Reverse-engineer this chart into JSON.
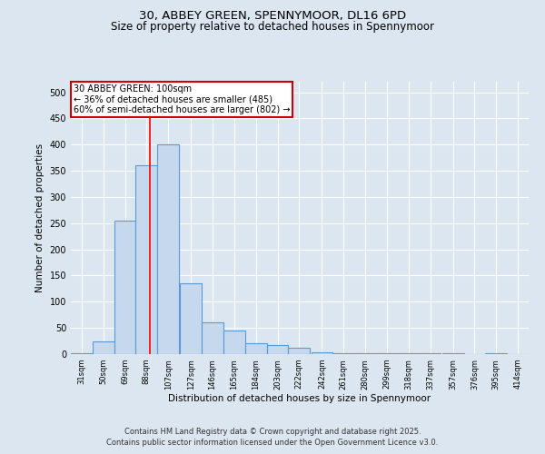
{
  "title1": "30, ABBEY GREEN, SPENNYMOOR, DL16 6PD",
  "title2": "Size of property relative to detached houses in Spennymoor",
  "xlabel": "Distribution of detached houses by size in Spennymoor",
  "ylabel": "Number of detached properties",
  "bar_left_edges": [
    31,
    50,
    69,
    88,
    107,
    127,
    146,
    165,
    184,
    203,
    222,
    242,
    261,
    280,
    299,
    318,
    337,
    357,
    376,
    395,
    414
  ],
  "bar_widths": [
    19,
    19,
    19,
    19,
    19,
    19,
    19,
    19,
    19,
    19,
    19,
    19,
    19,
    19,
    19,
    19,
    19,
    19,
    19,
    19,
    19
  ],
  "bar_heights": [
    2,
    25,
    255,
    360,
    400,
    135,
    60,
    45,
    20,
    18,
    12,
    3,
    2,
    2,
    1,
    2,
    1,
    1,
    0,
    1,
    0
  ],
  "tick_labels": [
    "31sqm",
    "50sqm",
    "69sqm",
    "88sqm",
    "107sqm",
    "127sqm",
    "146sqm",
    "165sqm",
    "184sqm",
    "203sqm",
    "222sqm",
    "242sqm",
    "261sqm",
    "280sqm",
    "299sqm",
    "318sqm",
    "337sqm",
    "357sqm",
    "376sqm",
    "395sqm",
    "414sqm"
  ],
  "bar_color": "#c5d8ed",
  "bar_edge_color": "#5b9bd5",
  "bar_edge_width": 0.8,
  "red_line_x": 100,
  "ylim": [
    0,
    520
  ],
  "yticks": [
    0,
    50,
    100,
    150,
    200,
    250,
    300,
    350,
    400,
    450,
    500
  ],
  "annotation_title": "30 ABBEY GREEN: 100sqm",
  "annotation_line1": "← 36% of detached houses are smaller (485)",
  "annotation_line2": "60% of semi-detached houses are larger (802) →",
  "annotation_box_color": "#ffffff",
  "annotation_box_edge": "#cc0000",
  "bg_color": "#dce6f0",
  "plot_bg_color": "#dce6f0",
  "grid_color": "#ffffff",
  "footer1": "Contains HM Land Registry data © Crown copyright and database right 2025.",
  "footer2": "Contains public sector information licensed under the Open Government Licence v3.0."
}
